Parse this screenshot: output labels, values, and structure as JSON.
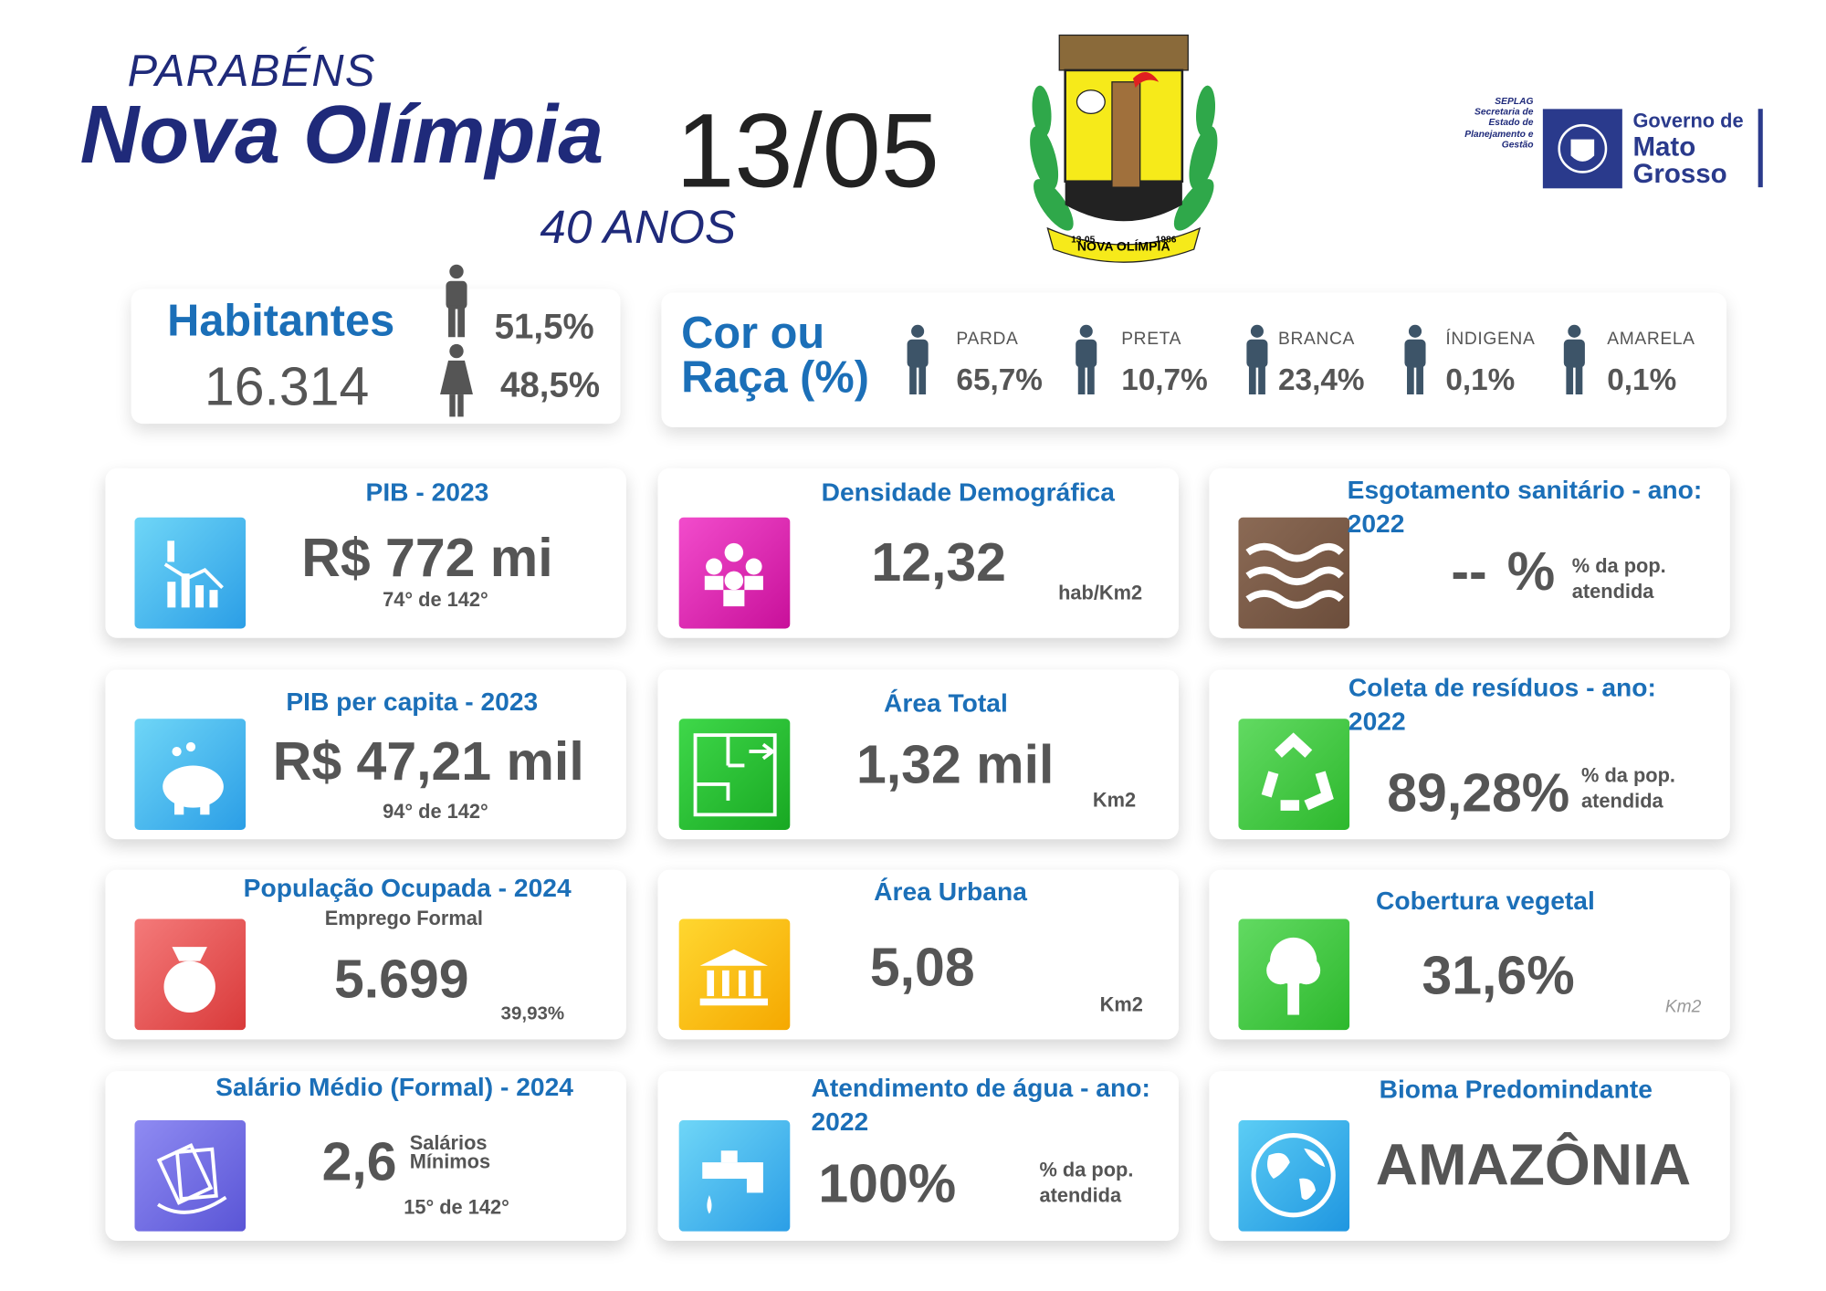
{
  "header": {
    "greeting": "PARABÉNS",
    "city": "Nova Olímpia",
    "date": "13/05",
    "anniversary": "40 ANOS"
  },
  "crest": {
    "date": "13-05",
    "name": "NOVA OLÍMPIA",
    "year": "1986"
  },
  "logo": {
    "agency": "SEPLAG",
    "agency_name": "Secretaria de Estado de Planejamento e Gestão",
    "government": "Governo de",
    "state": "Mato Grosso"
  },
  "population": {
    "title": "Habitantes",
    "value": "16.314",
    "male": "51,5%",
    "female": "48,5%"
  },
  "race": {
    "title": "Cor ou Raça (%)",
    "groups": [
      {
        "label": "PARDA",
        "value": "65,7%"
      },
      {
        "label": "PRETA",
        "value": "10,7%"
      },
      {
        "label": "BRANCA",
        "value": "23,4%"
      },
      {
        "label": "ÍNDIGENA",
        "value": "0,1%"
      },
      {
        "label": "AMARELA",
        "value": "0,1%"
      }
    ]
  },
  "cards": [
    {
      "title": "PIB - 2023",
      "value": "R$ 772 mi",
      "rank": "74° de 142°"
    },
    {
      "title": "PIB per capita - 2023",
      "value": "R$ 47,21 mil",
      "rank": "94° de 142°"
    },
    {
      "title": "População Ocupada - 2024",
      "subtitle": "Emprego Formal",
      "value": "5.699",
      "share": "39,93%"
    },
    {
      "title": "Salário Médio (Formal) - 2024",
      "value": "2,6",
      "unit": "Salários Mínimos",
      "rank": "15° de 142°"
    },
    {
      "title": "Densidade Demográfica",
      "value": "12,32",
      "unit": "hab/Km2"
    },
    {
      "title": "Área Total",
      "value": "1,32 mil",
      "unit": "Km2"
    },
    {
      "title": "Área Urbana",
      "value": "5,08",
      "unit": "Km2"
    },
    {
      "title": "Atendimento de água - ano: 2022",
      "value": "100%",
      "note": "% da pop. atendida"
    },
    {
      "title": "Esgotamento sanitário - ano: 2022",
      "value": "--",
      "unit": "%",
      "note": "% da pop. atendida"
    },
    {
      "title": "Coleta de resíduos - ano: 2022",
      "value": "89,28%",
      "note": "% da pop. atendida"
    },
    {
      "title": "Cobertura vegetal",
      "value": "31,6%",
      "unit": "Km2"
    },
    {
      "title": "Bioma Predomindante",
      "value": "AMAZÔNIA"
    }
  ]
}
